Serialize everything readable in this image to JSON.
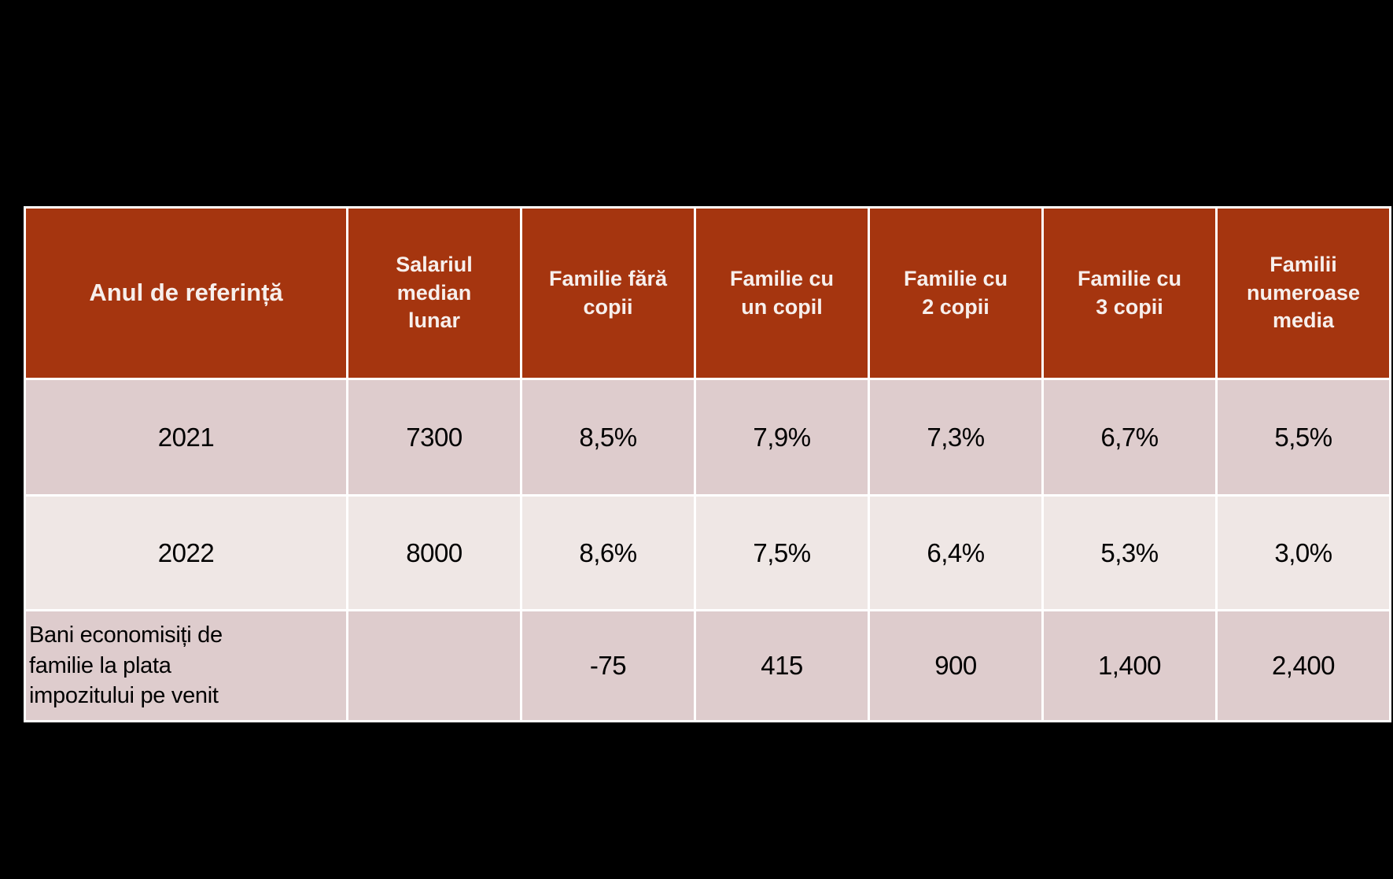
{
  "colors": {
    "slide_background": "#000000",
    "header_background": "#A5350F",
    "header_text": "#F7EFEC",
    "row_odd_background": "#DECCCD",
    "row_even_background": "#EFE7E5",
    "body_text": "#000000",
    "grid_lines": "#FFFFFF"
  },
  "chart_data": {
    "type": "table",
    "columns": [
      "Anul de referință",
      "Salariul\nmedian\nlunar",
      "Familie fără\ncopii",
      "Familie cu\nun copil",
      "Familie cu\n2 copii",
      "Familie cu\n3 copii",
      "Familii\nnumeroase\nmedia"
    ],
    "columns_plain": [
      "Anul de referință",
      "Salariul median lunar",
      "Familie fără copii",
      "Familie cu un copil",
      "Familie cu 2 copii",
      "Familie cu 3 copii",
      "Familii numeroase media"
    ],
    "rows": [
      [
        "2021",
        "7300",
        "8,5%",
        "7,9%",
        "7,3%",
        "6,7%",
        "5,5%"
      ],
      [
        "2022",
        "8000",
        "8,6%",
        "7,5%",
        "6,4%",
        "5,3%",
        "3,0%"
      ],
      [
        "Bani economisiți de\nfamilie la plata\nimpozitului pe venit",
        "",
        "-75",
        "415",
        "900",
        "1,400",
        "2,400"
      ]
    ],
    "row_3_label_plain": "Bani economisiți de familie la plata impozitului pe venit"
  }
}
